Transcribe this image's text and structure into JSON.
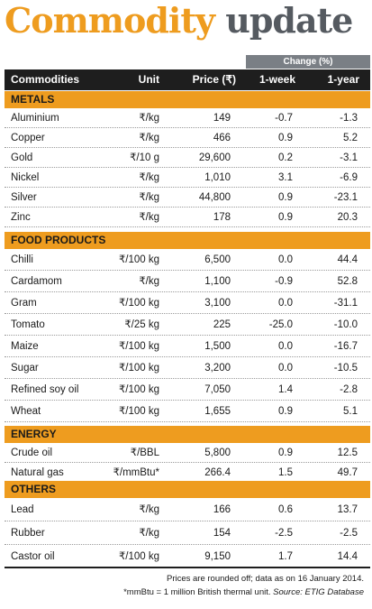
{
  "title": {
    "word1": "Commodity",
    "word2": "update"
  },
  "header": {
    "change_group": "Change (%)",
    "commodities": "Commodities",
    "unit": "Unit",
    "price": "Price (₹)",
    "week": "1-week",
    "year": "1-year"
  },
  "sections": [
    {
      "name": "METALS",
      "rows": [
        {
          "name": "Aluminium",
          "unit": "₹/kg",
          "price": "149",
          "week": "-0.7",
          "year": "-1.3"
        },
        {
          "name": "Copper",
          "unit": "₹/kg",
          "price": "466",
          "week": "0.9",
          "year": "5.2"
        },
        {
          "name": "Gold",
          "unit": "₹/10 g",
          "price": "29,600",
          "week": "0.2",
          "year": "-3.1"
        },
        {
          "name": "Nickel",
          "unit": "₹/kg",
          "price": "1,010",
          "week": "3.1",
          "year": "-6.9"
        },
        {
          "name": "Silver",
          "unit": "₹/kg",
          "price": "44,800",
          "week": "0.9",
          "year": "-23.1"
        },
        {
          "name": "Zinc",
          "unit": "₹/kg",
          "price": "178",
          "week": "0.9",
          "year": "20.3"
        }
      ]
    },
    {
      "name": "FOOD PRODUCTS",
      "rows": [
        {
          "name": "Chilli",
          "unit": "₹/100 kg",
          "price": "6,500",
          "week": "0.0",
          "year": "44.4"
        },
        {
          "name": "Cardamom",
          "unit": "₹/kg",
          "price": "1,100",
          "week": "-0.9",
          "year": "52.8"
        },
        {
          "name": "Gram",
          "unit": "₹/100 kg",
          "price": "3,100",
          "week": "0.0",
          "year": "-31.1"
        },
        {
          "name": "Tomato",
          "unit": "₹/25 kg",
          "price": "225",
          "week": "-25.0",
          "year": "-10.0"
        },
        {
          "name": "Maize",
          "unit": "₹/100 kg",
          "price": "1,500",
          "week": "0.0",
          "year": "-16.7"
        },
        {
          "name": "Sugar",
          "unit": "₹/100 kg",
          "price": "3,200",
          "week": "0.0",
          "year": "-10.5"
        },
        {
          "name": "Refined soy oil",
          "unit": "₹/100 kg",
          "price": "7,050",
          "week": "1.4",
          "year": "-2.8"
        },
        {
          "name": "Wheat",
          "unit": "₹/100 kg",
          "price": "1,655",
          "week": "0.9",
          "year": "5.1"
        }
      ]
    },
    {
      "name": "ENERGY",
      "rows": [
        {
          "name": "Crude oil",
          "unit": "₹/BBL",
          "price": "5,800",
          "week": "0.9",
          "year": "12.5"
        },
        {
          "name": "Natural gas",
          "unit": "₹/mmBtu*",
          "price": "266.4",
          "week": "1.5",
          "year": "49.7"
        }
      ]
    },
    {
      "name": "OTHERS",
      "rows": [
        {
          "name": "Lead",
          "unit": "₹/kg",
          "price": "166",
          "week": "0.6",
          "year": "13.7"
        },
        {
          "name": "Rubber",
          "unit": "₹/kg",
          "price": "154",
          "week": "-2.5",
          "year": "-2.5"
        },
        {
          "name": "Castor oil",
          "unit": "₹/100 kg",
          "price": "9,150",
          "week": "1.7",
          "year": "14.4"
        }
      ]
    }
  ],
  "footnote": {
    "line1": "Prices are rounded off; data as on 16 January 2014.",
    "line2": "*mmBtu = 1 million British thermal unit.",
    "source": "Source: ETIG Database"
  },
  "colors": {
    "accent": "#ee9c1f",
    "title_grey": "#555a60",
    "header_bg": "#1e1e1e",
    "change_bg": "#7a7f85"
  }
}
